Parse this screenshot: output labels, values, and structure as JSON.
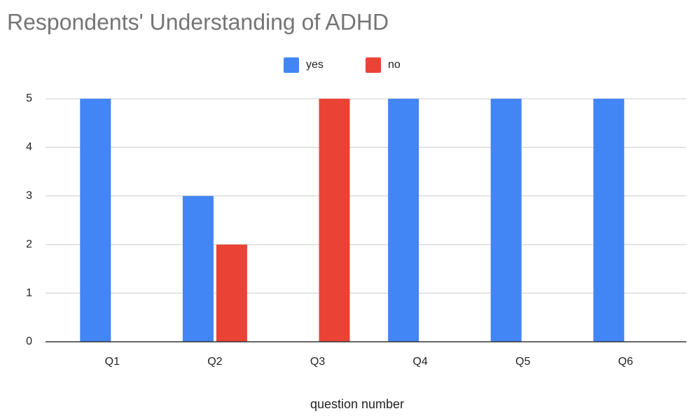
{
  "chart_data": {
    "type": "bar",
    "title": "Respondents' Understanding of ADHD",
    "x_label": "question number",
    "categories": [
      "Q1",
      "Q2",
      "Q3",
      "Q4",
      "Q5",
      "Q6"
    ],
    "series": [
      {
        "name": "yes",
        "color": "#4285f4",
        "values": [
          5,
          3,
          0,
          5,
          5,
          5
        ]
      },
      {
        "name": "no",
        "color": "#ea4335",
        "values": [
          0,
          2,
          5,
          0,
          0,
          0
        ]
      }
    ],
    "ylim": [
      0,
      5
    ],
    "yticks": [
      0,
      1,
      2,
      3,
      4,
      5
    ],
    "grid": true,
    "legend": "top"
  }
}
